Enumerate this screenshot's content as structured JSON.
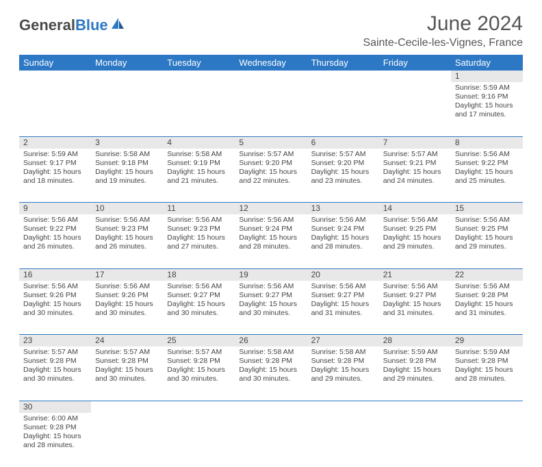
{
  "brand": {
    "part1": "General",
    "part2": "Blue"
  },
  "title": "June 2024",
  "location": "Sainte-Cecile-les-Vignes, France",
  "colors": {
    "header_bg": "#2d78c4",
    "header_text": "#ffffff",
    "daynum_bg": "#e8e8e8",
    "border": "#2d78c4",
    "text": "#444444",
    "brand_dark": "#4a4a4a",
    "brand_blue": "#2d78c4",
    "background": "#ffffff"
  },
  "typography": {
    "title_fontsize": 30,
    "location_fontsize": 16,
    "dayhead_fontsize": 13,
    "cell_fontsize": 10.5
  },
  "day_headers": [
    "Sunday",
    "Monday",
    "Tuesday",
    "Wednesday",
    "Thursday",
    "Friday",
    "Saturday"
  ],
  "weeks": [
    [
      null,
      null,
      null,
      null,
      null,
      null,
      {
        "n": "1",
        "sunrise": "Sunrise: 5:59 AM",
        "sunset": "Sunset: 9:16 PM",
        "daylight": "Daylight: 15 hours and 17 minutes."
      }
    ],
    [
      {
        "n": "2",
        "sunrise": "Sunrise: 5:59 AM",
        "sunset": "Sunset: 9:17 PM",
        "daylight": "Daylight: 15 hours and 18 minutes."
      },
      {
        "n": "3",
        "sunrise": "Sunrise: 5:58 AM",
        "sunset": "Sunset: 9:18 PM",
        "daylight": "Daylight: 15 hours and 19 minutes."
      },
      {
        "n": "4",
        "sunrise": "Sunrise: 5:58 AM",
        "sunset": "Sunset: 9:19 PM",
        "daylight": "Daylight: 15 hours and 21 minutes."
      },
      {
        "n": "5",
        "sunrise": "Sunrise: 5:57 AM",
        "sunset": "Sunset: 9:20 PM",
        "daylight": "Daylight: 15 hours and 22 minutes."
      },
      {
        "n": "6",
        "sunrise": "Sunrise: 5:57 AM",
        "sunset": "Sunset: 9:20 PM",
        "daylight": "Daylight: 15 hours and 23 minutes."
      },
      {
        "n": "7",
        "sunrise": "Sunrise: 5:57 AM",
        "sunset": "Sunset: 9:21 PM",
        "daylight": "Daylight: 15 hours and 24 minutes."
      },
      {
        "n": "8",
        "sunrise": "Sunrise: 5:56 AM",
        "sunset": "Sunset: 9:22 PM",
        "daylight": "Daylight: 15 hours and 25 minutes."
      }
    ],
    [
      {
        "n": "9",
        "sunrise": "Sunrise: 5:56 AM",
        "sunset": "Sunset: 9:22 PM",
        "daylight": "Daylight: 15 hours and 26 minutes."
      },
      {
        "n": "10",
        "sunrise": "Sunrise: 5:56 AM",
        "sunset": "Sunset: 9:23 PM",
        "daylight": "Daylight: 15 hours and 26 minutes."
      },
      {
        "n": "11",
        "sunrise": "Sunrise: 5:56 AM",
        "sunset": "Sunset: 9:23 PM",
        "daylight": "Daylight: 15 hours and 27 minutes."
      },
      {
        "n": "12",
        "sunrise": "Sunrise: 5:56 AM",
        "sunset": "Sunset: 9:24 PM",
        "daylight": "Daylight: 15 hours and 28 minutes."
      },
      {
        "n": "13",
        "sunrise": "Sunrise: 5:56 AM",
        "sunset": "Sunset: 9:24 PM",
        "daylight": "Daylight: 15 hours and 28 minutes."
      },
      {
        "n": "14",
        "sunrise": "Sunrise: 5:56 AM",
        "sunset": "Sunset: 9:25 PM",
        "daylight": "Daylight: 15 hours and 29 minutes."
      },
      {
        "n": "15",
        "sunrise": "Sunrise: 5:56 AM",
        "sunset": "Sunset: 9:25 PM",
        "daylight": "Daylight: 15 hours and 29 minutes."
      }
    ],
    [
      {
        "n": "16",
        "sunrise": "Sunrise: 5:56 AM",
        "sunset": "Sunset: 9:26 PM",
        "daylight": "Daylight: 15 hours and 30 minutes."
      },
      {
        "n": "17",
        "sunrise": "Sunrise: 5:56 AM",
        "sunset": "Sunset: 9:26 PM",
        "daylight": "Daylight: 15 hours and 30 minutes."
      },
      {
        "n": "18",
        "sunrise": "Sunrise: 5:56 AM",
        "sunset": "Sunset: 9:27 PM",
        "daylight": "Daylight: 15 hours and 30 minutes."
      },
      {
        "n": "19",
        "sunrise": "Sunrise: 5:56 AM",
        "sunset": "Sunset: 9:27 PM",
        "daylight": "Daylight: 15 hours and 30 minutes."
      },
      {
        "n": "20",
        "sunrise": "Sunrise: 5:56 AM",
        "sunset": "Sunset: 9:27 PM",
        "daylight": "Daylight: 15 hours and 31 minutes."
      },
      {
        "n": "21",
        "sunrise": "Sunrise: 5:56 AM",
        "sunset": "Sunset: 9:27 PM",
        "daylight": "Daylight: 15 hours and 31 minutes."
      },
      {
        "n": "22",
        "sunrise": "Sunrise: 5:56 AM",
        "sunset": "Sunset: 9:28 PM",
        "daylight": "Daylight: 15 hours and 31 minutes."
      }
    ],
    [
      {
        "n": "23",
        "sunrise": "Sunrise: 5:57 AM",
        "sunset": "Sunset: 9:28 PM",
        "daylight": "Daylight: 15 hours and 30 minutes."
      },
      {
        "n": "24",
        "sunrise": "Sunrise: 5:57 AM",
        "sunset": "Sunset: 9:28 PM",
        "daylight": "Daylight: 15 hours and 30 minutes."
      },
      {
        "n": "25",
        "sunrise": "Sunrise: 5:57 AM",
        "sunset": "Sunset: 9:28 PM",
        "daylight": "Daylight: 15 hours and 30 minutes."
      },
      {
        "n": "26",
        "sunrise": "Sunrise: 5:58 AM",
        "sunset": "Sunset: 9:28 PM",
        "daylight": "Daylight: 15 hours and 30 minutes."
      },
      {
        "n": "27",
        "sunrise": "Sunrise: 5:58 AM",
        "sunset": "Sunset: 9:28 PM",
        "daylight": "Daylight: 15 hours and 29 minutes."
      },
      {
        "n": "28",
        "sunrise": "Sunrise: 5:59 AM",
        "sunset": "Sunset: 9:28 PM",
        "daylight": "Daylight: 15 hours and 29 minutes."
      },
      {
        "n": "29",
        "sunrise": "Sunrise: 5:59 AM",
        "sunset": "Sunset: 9:28 PM",
        "daylight": "Daylight: 15 hours and 28 minutes."
      }
    ],
    [
      {
        "n": "30",
        "sunrise": "Sunrise: 6:00 AM",
        "sunset": "Sunset: 9:28 PM",
        "daylight": "Daylight: 15 hours and 28 minutes."
      },
      null,
      null,
      null,
      null,
      null,
      null
    ]
  ]
}
